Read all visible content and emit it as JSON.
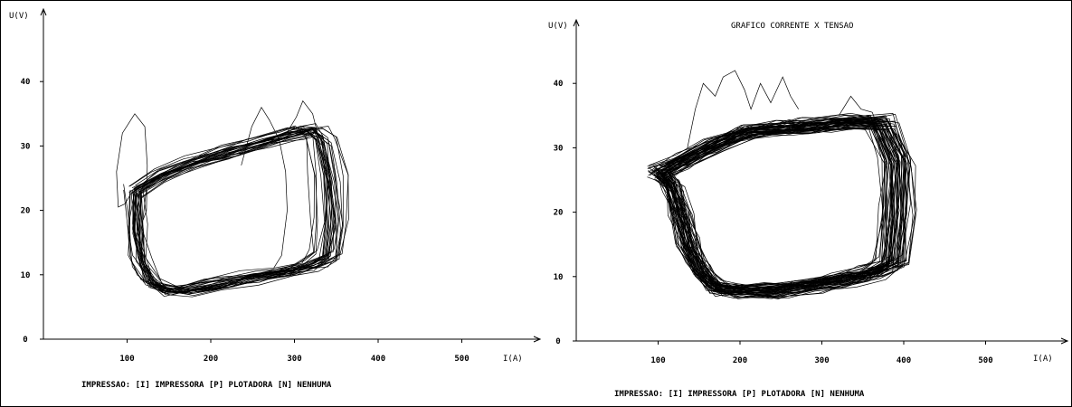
{
  "chart_data": [
    {
      "type": "line",
      "title": "",
      "xlabel": "I(A)",
      "ylabel": "U(V)",
      "xlim": [
        0,
        560
      ],
      "ylim": [
        0,
        47
      ],
      "x_ticks": [
        100,
        200,
        300,
        400,
        500
      ],
      "x_tick_labels": [
        "100",
        "200",
        "300",
        "400",
        "500"
      ],
      "y_ticks": [
        0,
        10,
        20,
        30,
        40
      ],
      "y_tick_labels": [
        "0",
        "10",
        "20",
        "30",
        "40"
      ],
      "grid": false,
      "footer": "IMPRESSAO: [I] IMPRESSORA   [P] PLOTADORA   [N] NENHUMA",
      "series": [
        {
          "values": [
            [
              110,
              23
            ],
            [
              140,
              25.5
            ],
            [
              180,
              27.5
            ],
            [
              220,
              29
            ],
            [
              260,
              30.5
            ],
            [
              300,
              32
            ],
            [
              318,
              32.5
            ],
            [
              330,
              31
            ],
            [
              340,
              25
            ],
            [
              343,
              18
            ],
            [
              338,
              13
            ],
            [
              320,
              11.5
            ],
            [
              290,
              10.5
            ],
            [
              250,
              9.5
            ],
            [
              210,
              8.5
            ],
            [
              170,
              7.5
            ],
            [
              145,
              7.5
            ],
            [
              128,
              9
            ],
            [
              115,
              12
            ],
            [
              110,
              17
            ],
            [
              110,
              23
            ]
          ],
          "loops": 30,
          "jitter": [
            16,
            1.3
          ]
        },
        {
          "values": [
            [
              105,
              22.5
            ],
            [
              98,
              21
            ],
            [
              90,
              20.5
            ],
            [
              88,
              26
            ],
            [
              95,
              32
            ],
            [
              110,
              35
            ],
            [
              122,
              33
            ],
            [
              125,
              27
            ],
            [
              124,
              20
            ],
            [
              120,
              18.5
            ]
          ]
        },
        {
          "values": [
            [
              245,
              27
            ],
            [
              258,
              33
            ],
            [
              270,
              36
            ],
            [
              280,
              34
            ],
            [
              292,
              31
            ],
            [
              300,
              26
            ],
            [
              302,
              20
            ],
            [
              295,
              13
            ],
            [
              285,
              11
            ]
          ]
        },
        {
          "values": [
            [
              300,
              32
            ],
            [
              312,
              34.5
            ],
            [
              320,
              37
            ],
            [
              332,
              35
            ],
            [
              338,
              32
            ]
          ]
        }
      ]
    },
    {
      "type": "line",
      "title": "GRAFICO CORRENTE X TENSAO",
      "xlabel": "I(A)",
      "ylabel": "U(V)",
      "xlim": [
        0,
        560
      ],
      "ylim": [
        0,
        47
      ],
      "x_ticks": [
        100,
        200,
        300,
        400,
        500
      ],
      "x_tick_labels": [
        "100",
        "200",
        "300",
        "400",
        "500"
      ],
      "y_ticks": [
        0,
        10,
        20,
        30,
        40
      ],
      "y_tick_labels": [
        "0",
        "10",
        "20",
        "30",
        "40"
      ],
      "grid": false,
      "footer": "IMPRESSAO: [I] IMPRESSORA   [P] PLOTADORA   [N] NENHUMA",
      "series": [
        {
          "values": [
            [
              100,
              26
            ],
            [
              130,
              28
            ],
            [
              170,
              30.5
            ],
            [
              210,
              32.5
            ],
            [
              250,
              33
            ],
            [
              290,
              33.5
            ],
            [
              330,
              34
            ],
            [
              370,
              34
            ],
            [
              390,
              28
            ],
            [
              390,
              20
            ],
            [
              385,
              12
            ],
            [
              360,
              10.5
            ],
            [
              320,
              9.5
            ],
            [
              280,
              8.5
            ],
            [
              240,
              7.8
            ],
            [
              200,
              7.8
            ],
            [
              170,
              8.2
            ],
            [
              150,
              11
            ],
            [
              135,
              15
            ],
            [
              125,
              20
            ],
            [
              115,
              24
            ],
            [
              100,
              26
            ]
          ],
          "loops": 55,
          "jitter": [
            20,
            1.6
          ]
        },
        {
          "values": [
            [
              140,
              30
            ],
            [
              150,
              36
            ],
            [
              160,
              40
            ],
            [
              175,
              38
            ],
            [
              185,
              41
            ],
            [
              200,
              42
            ],
            [
              212,
              39
            ],
            [
              220,
              36
            ],
            [
              232,
              40
            ],
            [
              245,
              37
            ],
            [
              260,
              41
            ],
            [
              270,
              38
            ],
            [
              280,
              36
            ]
          ]
        },
        {
          "values": [
            [
              330,
              35
            ],
            [
              345,
              38
            ],
            [
              358,
              36
            ],
            [
              372,
              35.5
            ],
            [
              380,
              33
            ]
          ]
        }
      ]
    }
  ]
}
